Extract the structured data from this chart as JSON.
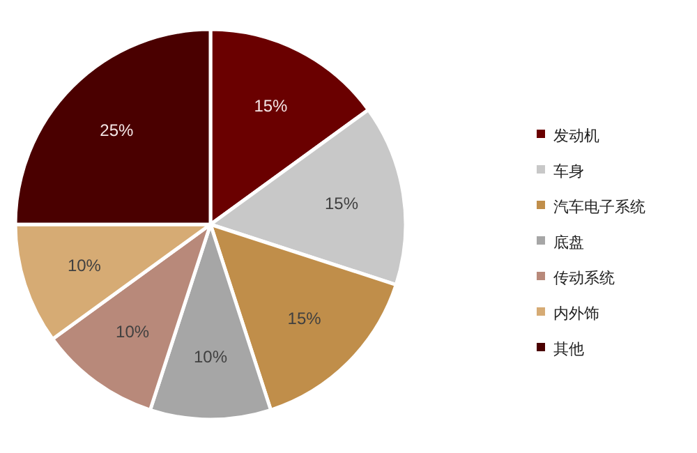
{
  "chart_data": {
    "type": "pie",
    "categories": [
      "发动机",
      "车身",
      "汽车电子系统",
      "底盘",
      "传动系统",
      "内外饰",
      "其他"
    ],
    "values": [
      15,
      15,
      15,
      10,
      10,
      10,
      25
    ],
    "colors": [
      "#6a0000",
      "#c8c8c8",
      "#c08e4a",
      "#a6a6a6",
      "#b8897a",
      "#d6ab74",
      "#4a0000"
    ],
    "value_labels": [
      "15%",
      "15%",
      "15%",
      "10%",
      "10%",
      "10%",
      "25%"
    ],
    "legend": "right"
  }
}
